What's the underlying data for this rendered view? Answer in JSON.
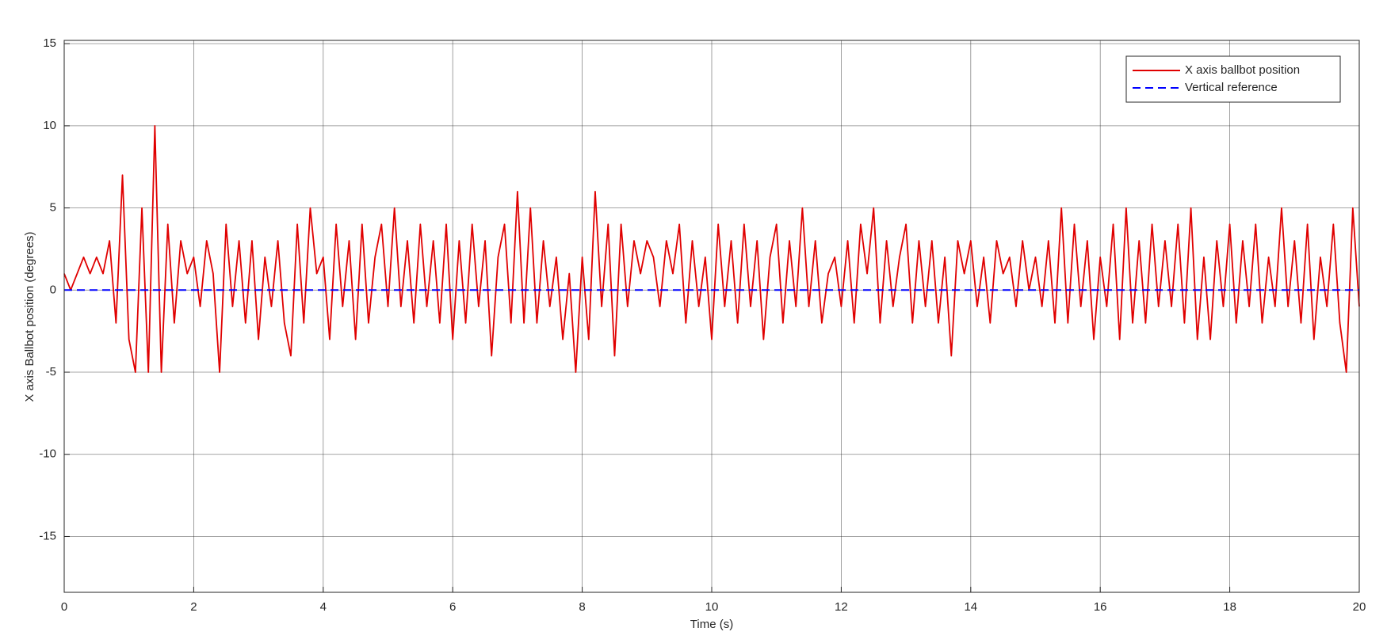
{
  "chart_data": {
    "type": "line",
    "xlabel": "Time (s)",
    "ylabel": "X axis Ballbot position (degrees)",
    "xlim": [
      0,
      20
    ],
    "xticks": [
      0,
      2,
      4,
      6,
      8,
      10,
      12,
      14,
      16,
      18,
      20
    ],
    "ylim": [
      -18.4,
      15.2
    ],
    "yticks": [
      -15,
      -10,
      -5,
      0,
      5,
      10,
      15
    ],
    "grid": true,
    "legend": "upper right",
    "series": [
      {
        "name": "X axis ballbot position",
        "color": "#e00000",
        "style": "solid",
        "x": [
          0,
          0.1,
          0.2,
          0.3,
          0.4,
          0.5,
          0.6,
          0.7,
          0.8,
          0.9,
          1,
          1.1,
          1.2,
          1.3,
          1.4,
          1.5,
          1.6,
          1.7,
          1.8,
          1.9,
          2,
          2.1,
          2.2,
          2.3,
          2.4,
          2.5,
          2.6,
          2.7,
          2.8,
          2.9,
          3,
          3.1,
          3.2,
          3.3,
          3.4,
          3.5,
          3.6,
          3.7,
          3.8,
          3.9,
          4,
          4.1,
          4.2,
          4.3,
          4.4,
          4.5,
          4.6,
          4.7,
          4.8,
          4.9,
          5,
          5.1,
          5.2,
          5.3,
          5.4,
          5.5,
          5.6,
          5.7,
          5.8,
          5.9,
          6,
          6.1,
          6.2,
          6.3,
          6.4,
          6.5,
          6.6,
          6.7,
          6.8,
          6.9,
          7,
          7.1,
          7.2,
          7.3,
          7.4,
          7.5,
          7.6,
          7.7,
          7.8,
          7.9,
          8,
          8.1,
          8.2,
          8.3,
          8.4,
          8.5,
          8.6,
          8.7,
          8.8,
          8.9,
          9,
          9.1,
          9.2,
          9.3,
          9.4,
          9.5,
          9.6,
          9.7,
          9.8,
          9.9,
          10,
          10.1,
          10.2,
          10.3,
          10.4,
          10.5,
          10.6,
          10.7,
          10.8,
          10.9,
          11,
          11.1,
          11.2,
          11.3,
          11.4,
          11.5,
          11.6,
          11.7,
          11.8,
          11.9,
          12,
          12.1,
          12.2,
          12.3,
          12.4,
          12.5,
          12.6,
          12.7,
          12.8,
          12.9,
          13,
          13.1,
          13.2,
          13.3,
          13.4,
          13.5,
          13.6,
          13.7,
          13.8,
          13.9,
          14,
          14.1,
          14.2,
          14.3,
          14.4,
          14.5,
          14.6,
          14.7,
          14.8,
          14.9,
          15,
          15.1,
          15.2,
          15.3,
          15.4,
          15.5,
          15.6,
          15.7,
          15.8,
          15.9,
          16,
          16.1,
          16.2,
          16.3,
          16.4,
          16.5,
          16.6,
          16.7,
          16.8,
          16.9,
          17,
          17.1,
          17.2,
          17.3,
          17.4,
          17.5,
          17.6,
          17.7,
          17.8,
          17.9,
          18,
          18.1,
          18.2,
          18.3,
          18.4,
          18.5,
          18.6,
          18.7,
          18.8,
          18.9,
          19,
          19.1,
          19.2,
          19.3,
          19.4,
          19.5,
          19.6,
          19.7,
          19.8,
          19.9,
          20
        ],
        "values": [
          1,
          0,
          1,
          2,
          1,
          2,
          1,
          3,
          -2,
          7,
          -3,
          -5,
          5,
          -5,
          10,
          -5,
          4,
          -2,
          3,
          1,
          2,
          -1,
          3,
          1,
          -5,
          4,
          -1,
          3,
          -2,
          3,
          -3,
          2,
          -1,
          3,
          -2,
          -4,
          4,
          -2,
          5,
          1,
          2,
          -3,
          4,
          -1,
          3,
          -3,
          4,
          -2,
          2,
          4,
          -1,
          5,
          -1,
          3,
          -2,
          4,
          -1,
          3,
          -2,
          4,
          -3,
          3,
          -2,
          4,
          -1,
          3,
          -4,
          2,
          4,
          -2,
          6,
          -2,
          5,
          -2,
          3,
          -1,
          2,
          -3,
          1,
          -5,
          2,
          -3,
          6,
          -1,
          4,
          -4,
          4,
          -1,
          3,
          1,
          3,
          2,
          -1,
          3,
          1,
          4,
          -2,
          3,
          -1,
          2,
          -3,
          4,
          -1,
          3,
          -2,
          4,
          -1,
          3,
          -3,
          2,
          4,
          -2,
          3,
          -1,
          5,
          -1,
          3,
          -2,
          1,
          2,
          -1,
          3,
          -2,
          4,
          1,
          5,
          -2,
          3,
          -1,
          2,
          4,
          -2,
          3,
          -1,
          3,
          -2,
          2,
          -4,
          3,
          1,
          3,
          -1,
          2,
          -2,
          3,
          1,
          2,
          -1,
          3,
          0,
          2,
          -1,
          3,
          -2,
          5,
          -2,
          4,
          -1,
          3,
          -3,
          2,
          -1,
          4,
          -3,
          5,
          -2,
          3,
          -2,
          4,
          -1,
          3,
          -1,
          4,
          -2,
          5,
          -3,
          2,
          -3,
          3,
          -1,
          4,
          -2,
          3,
          -1,
          4,
          -2,
          2,
          -1,
          5,
          -1,
          3,
          -2,
          4,
          -3,
          2,
          -1,
          4,
          -2,
          -5,
          5,
          -1
        ]
      },
      {
        "name": "Vertical reference",
        "color": "#0000ff",
        "style": "dashed",
        "x": [
          0,
          20
        ],
        "values": [
          0,
          0
        ]
      }
    ]
  }
}
